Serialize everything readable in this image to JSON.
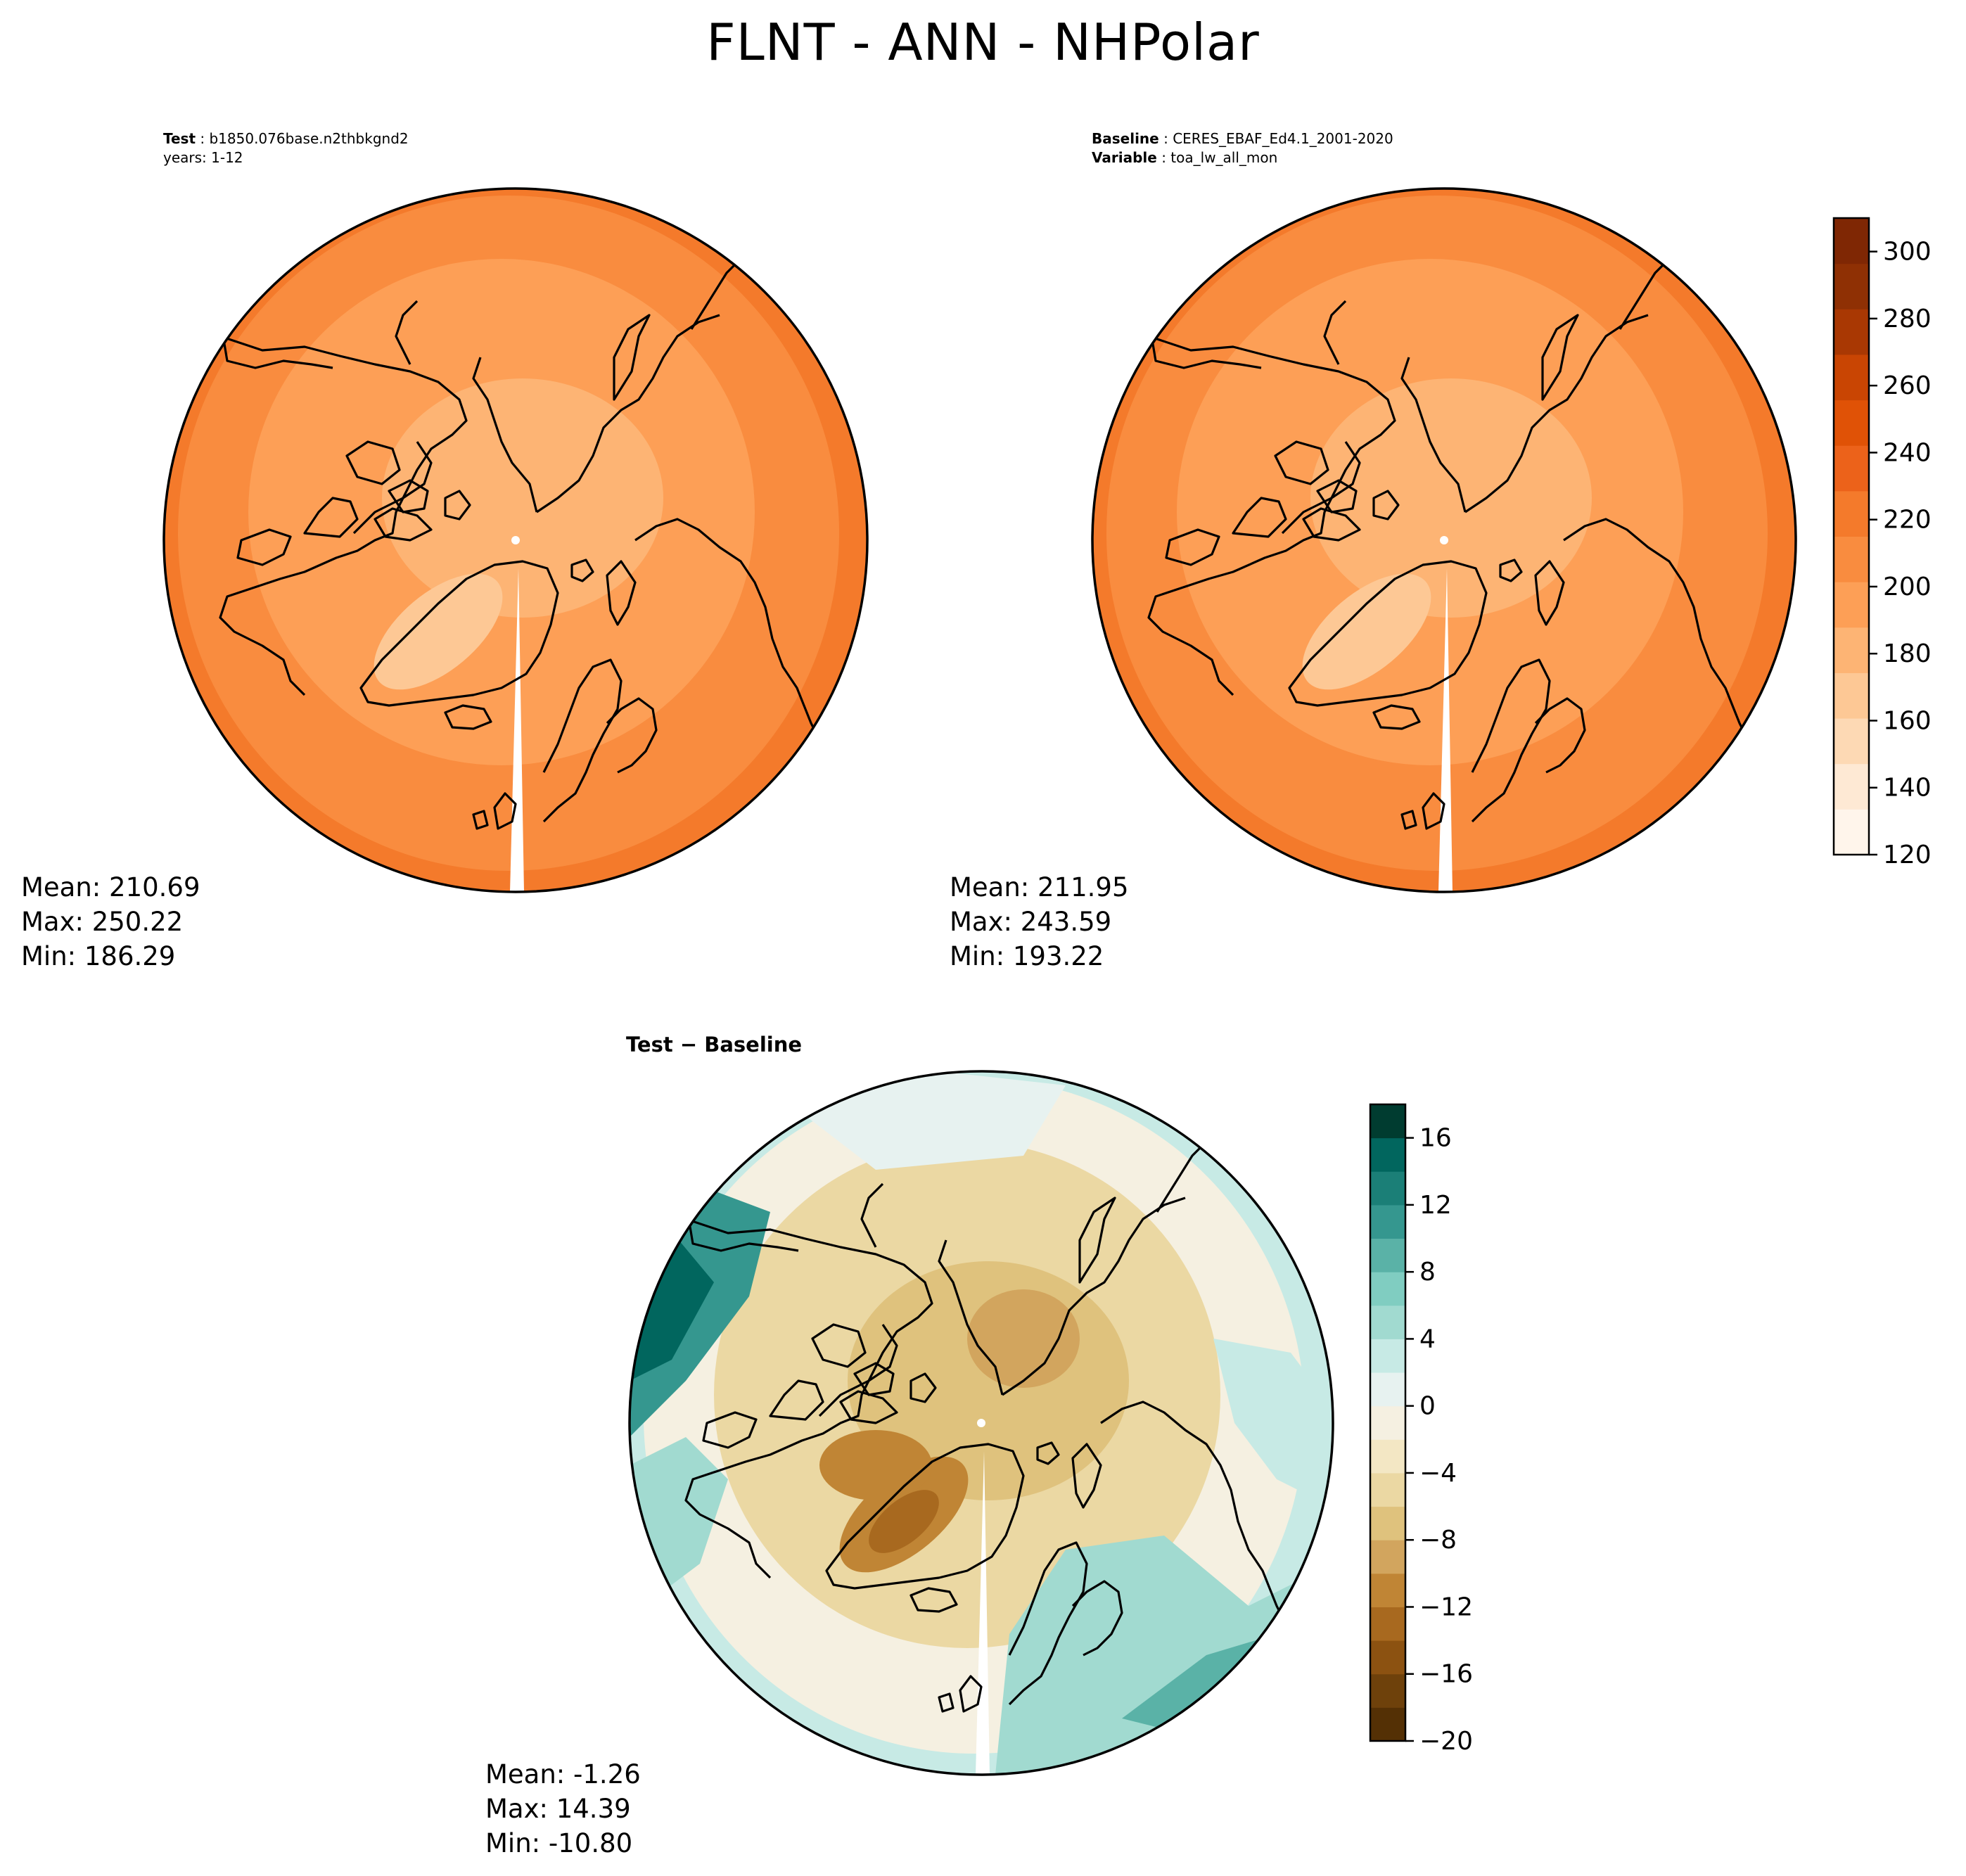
{
  "title": "FLNT - ANN - NHPolar",
  "test_panel": {
    "name_key": "Test",
    "name_value": "b1850.076base.n2thbkgnd2",
    "years_line": "years: 1-12",
    "stats": {
      "mean": "Mean: 210.69",
      "max": "Max: 250.22",
      "min": "Min: 186.29"
    }
  },
  "baseline_panel": {
    "name_key": "Baseline",
    "name_value": "CERES_EBAF_Ed4.1_2001-2020",
    "var_key": "Variable",
    "var_value": "toa_lw_all_mon",
    "stats": {
      "mean": "Mean: 211.95",
      "max": "Max: 243.59",
      "min": "Min: 193.22"
    }
  },
  "diff_panel": {
    "title": "Test − Baseline",
    "stats": {
      "mean": "Mean: -1.26",
      "max": "Max: 14.39",
      "min": "Min: -10.80"
    }
  },
  "colorbar_main": {
    "ticks": [
      "120",
      "140",
      "160",
      "180",
      "200",
      "220",
      "240",
      "260",
      "280",
      "300"
    ],
    "min": 120,
    "max": 310,
    "colors": [
      "#fff5eb",
      "#fee9d4",
      "#fdd9b4",
      "#fdc895",
      "#fdb474",
      "#fd9f56",
      "#f98c3f",
      "#f47a2b",
      "#ec621a",
      "#e05206",
      "#c94503",
      "#a93803",
      "#8f3004",
      "#7f2704"
    ]
  },
  "colorbar_diff": {
    "ticks": [
      "16",
      "12",
      "8",
      "4",
      "0",
      "−4",
      "−8",
      "−12",
      "−16",
      "−20"
    ],
    "min": -20,
    "max": 18,
    "colors": [
      "#543005",
      "#6e410b",
      "#8c5211",
      "#a8691f",
      "#c08535",
      "#d2a55e",
      "#dfc27d",
      "#ebd8a3",
      "#f3e7c4",
      "#f5f0e1",
      "#e7f2f0",
      "#c7eae5",
      "#a1dad0",
      "#80cdc1",
      "#5ab2a7",
      "#35978f",
      "#1b7f77",
      "#01665e",
      "#003c30"
    ]
  },
  "maps": {
    "test": {
      "type": "field",
      "ocean": "#f98c3f",
      "mid": "#fd9f56",
      "center": "#fdb474",
      "edge": "#f47a2b",
      "land_hi": "#fdc895"
    },
    "baseline": {
      "type": "field",
      "ocean": "#f98c3f",
      "mid": "#fd9f56",
      "center": "#fdb474",
      "edge": "#f47a2b",
      "land_hi": "#fdc895"
    },
    "diff": {
      "type": "field",
      "ocean": "#f5f0e1",
      "mid": "#ebd8a3",
      "center": "#dfc27d",
      "edge": "#c7eae5",
      "land_hi": "#c08535"
    }
  }
}
